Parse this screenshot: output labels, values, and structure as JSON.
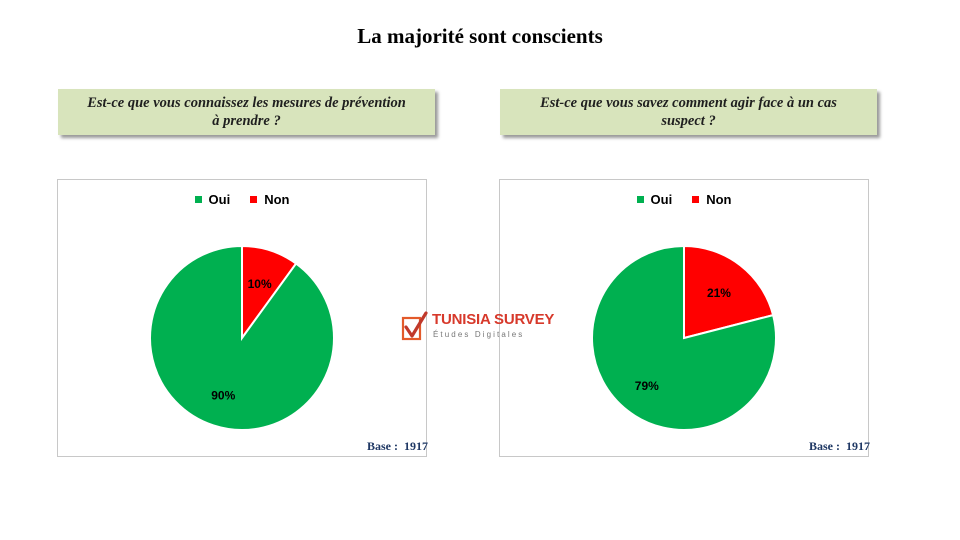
{
  "title": "La majorité sont conscients",
  "logo": {
    "name": "TUNISIA SURVEY",
    "tagline": "Études Digitales"
  },
  "colors": {
    "oui": "#00b050",
    "non": "#ff0000",
    "question_bg": "#d8e4bc"
  },
  "chart_data": [
    {
      "type": "pie",
      "title": "Est-ce que vous connaissez les mesures de prévention à prendre  ?",
      "categories": [
        "Oui",
        "Non"
      ],
      "values": [
        90,
        10
      ],
      "labels": [
        "90%",
        "10%"
      ],
      "legend_position": "top",
      "base": "Base :  1917"
    },
    {
      "type": "pie",
      "title": "Est-ce que vous savez comment agir face à un cas suspect ?",
      "categories": [
        "Oui",
        "Non"
      ],
      "values": [
        79,
        21
      ],
      "labels": [
        "79%",
        "21%"
      ],
      "legend_position": "top",
      "base": "Base :  1917"
    }
  ]
}
